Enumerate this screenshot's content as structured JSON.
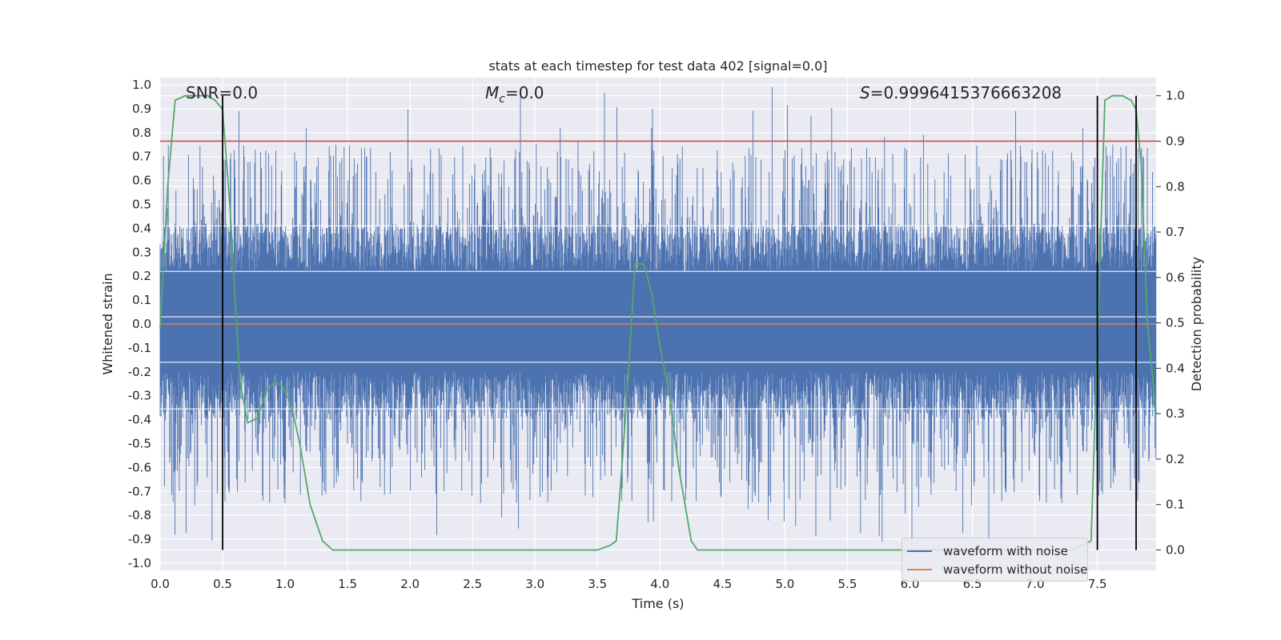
{
  "chart_data": {
    "type": "line",
    "title": "stats at each timestep for test data 402 [signal=0.0]",
    "xlabel": "Time (s)",
    "ylabel": "Whitened strain",
    "y2label": "Detection probability",
    "xlim": [
      0.0,
      7.97
    ],
    "ylim": [
      -1.03,
      1.03
    ],
    "y2lim": [
      -0.045,
      1.04
    ],
    "x_ticks": [
      "0.0",
      "0.5",
      "1.0",
      "1.5",
      "2.0",
      "2.5",
      "3.0",
      "3.5",
      "4.0",
      "4.5",
      "5.0",
      "5.5",
      "6.0",
      "6.5",
      "7.0",
      "7.5"
    ],
    "y_ticks": [
      "1.0",
      "0.9",
      "0.8",
      "0.7",
      "0.6",
      "0.5",
      "0.4",
      "0.3",
      "0.2",
      "0.1",
      "0.0",
      "-0.1",
      "-0.2",
      "-0.3",
      "-0.4",
      "-0.5",
      "-0.6",
      "-0.7",
      "-0.8",
      "-0.9",
      "-1.0"
    ],
    "y2_ticks": [
      "1.0",
      "0.9",
      "0.8",
      "0.7",
      "0.6",
      "0.5",
      "0.4",
      "0.3",
      "0.2",
      "0.1",
      "0.0"
    ],
    "grid": true,
    "legend_position": "lower-right",
    "annotations": {
      "snr": "SNR=0.0",
      "mc_symbol": "M",
      "mc_sub": "c",
      "mc_value": "=0.0",
      "s_symbol": "S",
      "s_value": "=0.9996415376663208"
    },
    "threshold_line": {
      "value": 0.9,
      "axis": "detection probability",
      "color": "#c44e52"
    },
    "detection_marks_x": [
      0.5,
      7.5,
      7.81
    ],
    "series": [
      {
        "name": "waveform with noise",
        "color": "#4c72b0",
        "note_envelope_typical": [
          -0.34,
          0.33
        ]
      },
      {
        "name": "waveform without noise",
        "color": "#dd8452",
        "values_constant": 0.0
      },
      {
        "color": "#55a868",
        "x": [
          0.0,
          0.06,
          0.12,
          0.2,
          0.3,
          0.38,
          0.44,
          0.5,
          0.56,
          0.6,
          0.64,
          0.7,
          0.78,
          0.85,
          0.92,
          0.98,
          1.05,
          1.12,
          1.2,
          1.3,
          1.38,
          1.5,
          3.5,
          3.6,
          3.65,
          3.7,
          3.75,
          3.8,
          3.87,
          3.93,
          4.0,
          4.08,
          4.15,
          4.2,
          4.25,
          4.3,
          4.4,
          7.3,
          7.45,
          7.5,
          7.56,
          7.62,
          7.7,
          7.77,
          7.81,
          7.85,
          7.9,
          7.97
        ],
        "values": [
          0.49,
          0.8,
          0.99,
          1.0,
          1.0,
          1.0,
          0.99,
          0.97,
          0.75,
          0.55,
          0.37,
          0.28,
          0.29,
          0.35,
          0.37,
          0.36,
          0.32,
          0.23,
          0.1,
          0.02,
          0.0,
          0.0,
          0.0,
          0.01,
          0.02,
          0.2,
          0.4,
          0.63,
          0.63,
          0.57,
          0.45,
          0.33,
          0.18,
          0.1,
          0.02,
          0.0,
          0.0,
          0.0,
          0.02,
          0.45,
          0.99,
          1.0,
          1.0,
          0.99,
          0.97,
          0.85,
          0.5,
          0.3
        ]
      }
    ]
  }
}
